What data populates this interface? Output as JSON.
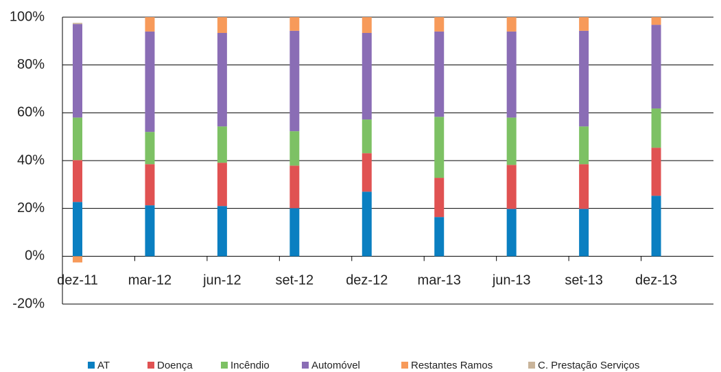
{
  "chart_data": {
    "type": "stacked-bar",
    "categories": [
      "dez-11",
      "mar-12",
      "jun-12",
      "set-12",
      "dez-12",
      "mar-13",
      "jun-13",
      "set-13",
      "dez-13"
    ],
    "series": [
      {
        "name": "AT",
        "color": "#0a7fc1",
        "values": [
          22.7,
          21.3,
          21.0,
          20.1,
          27.0,
          16.4,
          19.8,
          19.8,
          25.3
        ]
      },
      {
        "name": "Doença",
        "color": "#e05252",
        "values": [
          17.5,
          17.2,
          18.1,
          17.8,
          16.1,
          16.4,
          18.4,
          18.7,
          20.1
        ]
      },
      {
        "name": "Incêndio",
        "color": "#7dc164",
        "values": [
          17.8,
          13.5,
          15.2,
          14.4,
          14.1,
          25.5,
          19.8,
          15.8,
          16.4
        ]
      },
      {
        "name": "Automóvel",
        "color": "#8a6db5",
        "values": [
          39.1,
          42.0,
          39.1,
          42.0,
          36.2,
          35.7,
          36.0,
          40.0,
          35.0
        ]
      },
      {
        "name": "Restantes Ramos",
        "color": "#f79a5a",
        "values": [
          -2.6,
          6.0,
          6.6,
          5.7,
          6.6,
          6.0,
          6.0,
          5.7,
          3.2
        ]
      },
      {
        "name": "C. Prestação Serviços",
        "color": "#c9b49a",
        "values": [
          0.5,
          0,
          0,
          0,
          0,
          0,
          0,
          0,
          0
        ]
      }
    ],
    "ylim": [
      -20,
      100
    ],
    "yticks": [
      {
        "value": -20,
        "label": "-20%"
      },
      {
        "value": 0,
        "label": "0%"
      },
      {
        "value": 20,
        "label": "20%"
      },
      {
        "value": 40,
        "label": "40%"
      },
      {
        "value": 60,
        "label": "60%"
      },
      {
        "value": 80,
        "label": "80%"
      },
      {
        "value": 100,
        "label": "100%"
      }
    ],
    "grid": true
  }
}
